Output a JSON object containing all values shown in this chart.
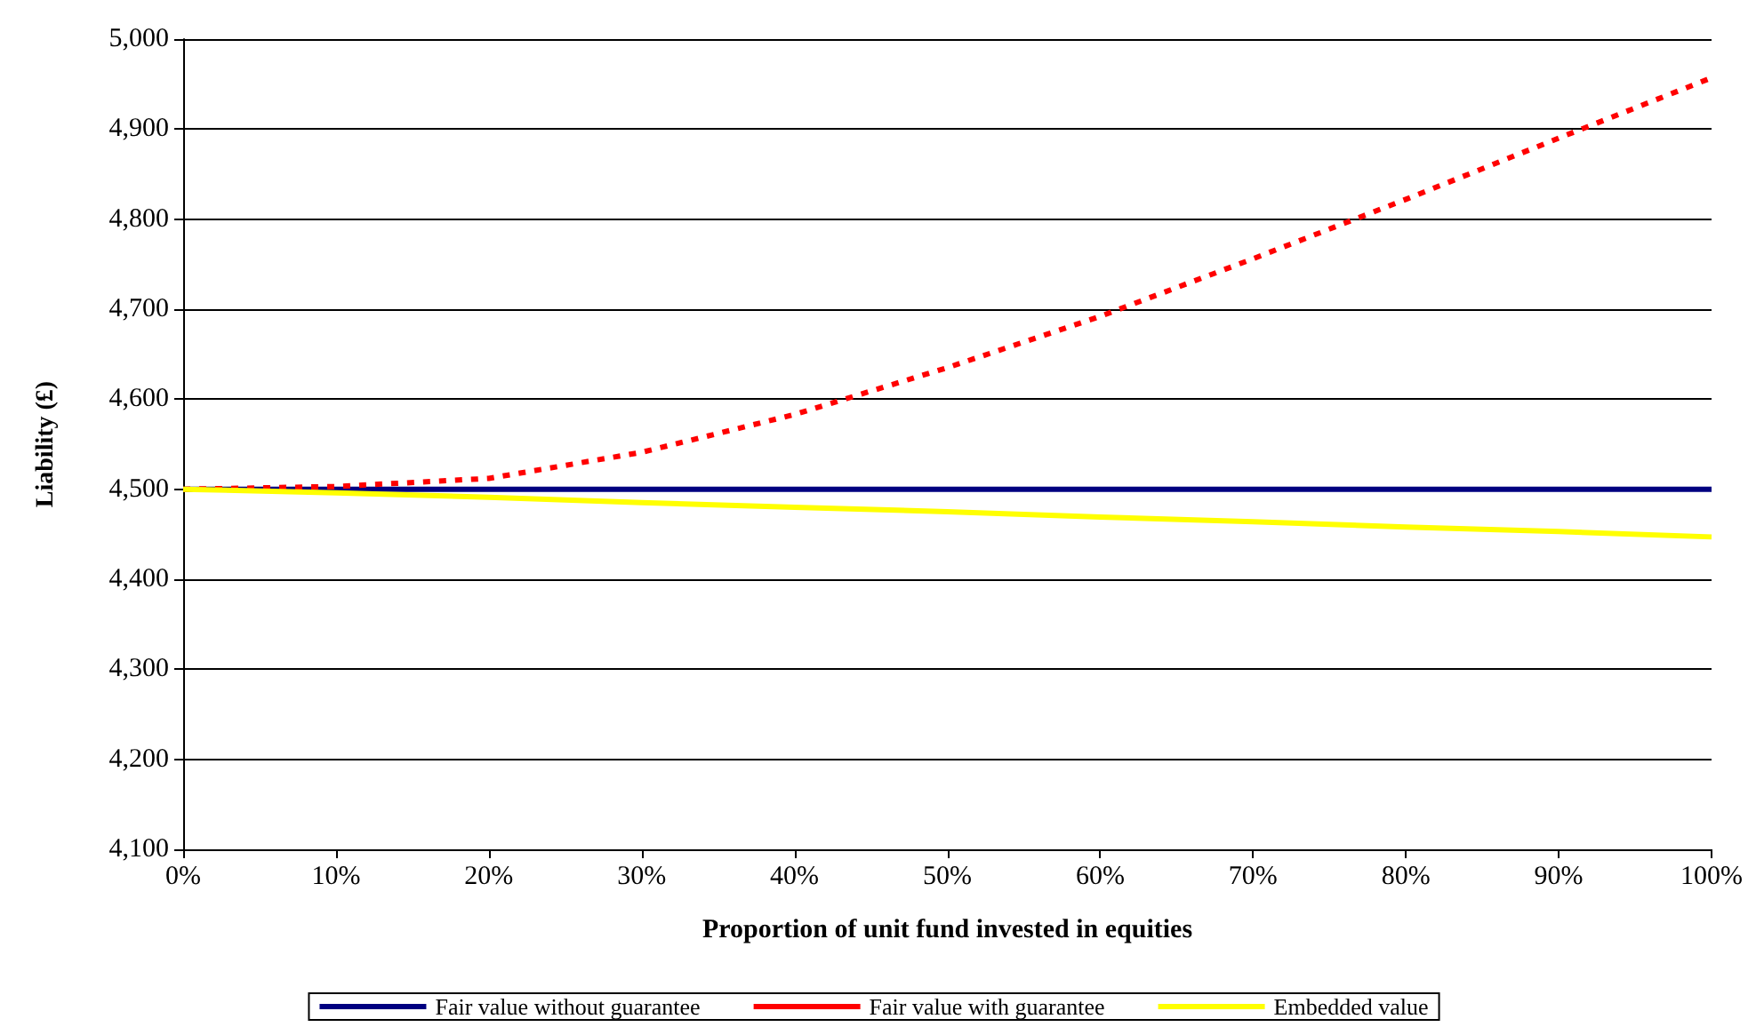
{
  "chart_data": {
    "type": "line",
    "xlabel": "Proportion of unit fund invested in equities",
    "ylabel": "Liability (£)",
    "x": [
      0,
      10,
      20,
      30,
      40,
      50,
      60,
      70,
      80,
      90,
      100
    ],
    "series": [
      {
        "name": "Fair value without guarantee",
        "color": "#000080",
        "line_style": "solid",
        "values": [
          4500,
          4500,
          4500,
          4500,
          4500,
          4500,
          4500,
          4500,
          4500,
          4500,
          4500
        ]
      },
      {
        "name": "Fair value with guarantee",
        "color": "#ff0000",
        "line_style": "dashed",
        "values": [
          4500,
          4503,
          4512,
          4541,
          4583,
          4635,
          4692,
          4756,
          4822,
          4890,
          4957
        ]
      },
      {
        "name": "Embedded value",
        "color": "#ffff00",
        "line_style": "solid",
        "values": [
          4500,
          4496,
          4491,
          4485,
          4480,
          4475,
          4469,
          4464,
          4458,
          4453,
          4447
        ]
      }
    ],
    "xlim": [
      0,
      100
    ],
    "xticks": [
      {
        "value": 0,
        "label": "0%"
      },
      {
        "value": 10,
        "label": "10%"
      },
      {
        "value": 20,
        "label": "20%"
      },
      {
        "value": 30,
        "label": "30%"
      },
      {
        "value": 40,
        "label": "40%"
      },
      {
        "value": 50,
        "label": "50%"
      },
      {
        "value": 60,
        "label": "60%"
      },
      {
        "value": 70,
        "label": "70%"
      },
      {
        "value": 80,
        "label": "80%"
      },
      {
        "value": 90,
        "label": "90%"
      },
      {
        "value": 100,
        "label": "100%"
      }
    ],
    "ylim": [
      4100,
      5000
    ],
    "yticks": [
      {
        "value": 4100,
        "label": "4,100"
      },
      {
        "value": 4200,
        "label": "4,200"
      },
      {
        "value": 4300,
        "label": "4,300"
      },
      {
        "value": 4400,
        "label": "4,400"
      },
      {
        "value": 4500,
        "label": "4,500"
      },
      {
        "value": 4600,
        "label": "4,600"
      },
      {
        "value": 4700,
        "label": "4,700"
      },
      {
        "value": 4800,
        "label": "4,800"
      },
      {
        "value": 4900,
        "label": "4,900"
      },
      {
        "value": 5000,
        "label": "5,000"
      }
    ],
    "grid": "y",
    "legend": "bottom",
    "marker": "none"
  }
}
